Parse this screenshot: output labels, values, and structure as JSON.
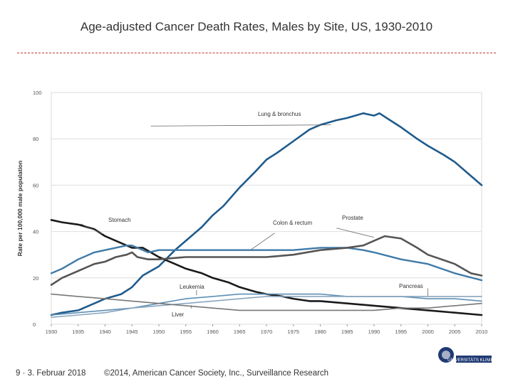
{
  "slide": {
    "title": "Age-adjusted Cancer Death Rates, Males by Site, US, 1930-2010",
    "footer_left": "9 · 3. Februar 2018",
    "footer_right": "©2014, American Cancer Society, Inc., Surveillance Research"
  },
  "logo": {
    "text": "UNIVERSITÄTS KLINIKUM",
    "icon": "university-hospital-logo"
  },
  "colors": {
    "rule": "#c0392b",
    "brand": "#1f3a73"
  },
  "chart_data": {
    "type": "line",
    "ylabel": "Rate per 100,000 male population",
    "xlabel": "",
    "xlim": [
      1930,
      2010
    ],
    "ylim": [
      0,
      100
    ],
    "xticks": [
      "1930",
      "1935",
      "1940",
      "1945",
      "1950",
      "1955",
      "1960",
      "1965",
      "1970",
      "1975",
      "1980",
      "1985",
      "1990",
      "1995",
      "2000",
      "2005",
      "2010"
    ],
    "yticks": [
      "0",
      "20",
      "40",
      "60",
      "80",
      "100"
    ],
    "grid": true,
    "series": [
      {
        "name": "Lung & bronchus",
        "label": "Lung & bronchus",
        "color": "#1f5b8c",
        "width": 2.6,
        "x": [
          1930,
          1932,
          1935,
          1938,
          1940,
          1943,
          1945,
          1947,
          1950,
          1953,
          1955,
          1958,
          1960,
          1962,
          1965,
          1968,
          1970,
          1972,
          1975,
          1978,
          1980,
          1983,
          1985,
          1988,
          1990,
          1991,
          1993,
          1995,
          1998,
          2000,
          2003,
          2005,
          2008,
          2010
        ],
        "y": [
          4,
          5,
          6,
          9,
          11,
          13,
          16,
          21,
          25,
          32,
          36,
          42,
          47,
          51,
          59,
          66,
          71,
          74,
          79,
          84,
          86,
          88,
          89,
          91,
          90,
          91,
          88,
          85,
          80,
          77,
          73,
          70,
          64,
          60
        ]
      },
      {
        "name": "Stomach",
        "label": "Stomach",
        "color": "#1a1a1a",
        "width": 2.6,
        "x": [
          1930,
          1932,
          1935,
          1938,
          1940,
          1943,
          1945,
          1947,
          1950,
          1953,
          1955,
          1958,
          1960,
          1963,
          1965,
          1968,
          1970,
          1973,
          1975,
          1978,
          1980,
          1985,
          1990,
          1995,
          2000,
          2005,
          2010
        ],
        "y": [
          45,
          44,
          43,
          41,
          38,
          35,
          33,
          33,
          29,
          26,
          24,
          22,
          20,
          18,
          16,
          14,
          13,
          12,
          11,
          10,
          10,
          9,
          8,
          7,
          6,
          5,
          4
        ]
      },
      {
        "name": "Colon & rectum",
        "label": "Colon & rectum",
        "color": "#3f7aa8",
        "width": 2.4,
        "x": [
          1930,
          1932,
          1935,
          1938,
          1940,
          1942,
          1944,
          1945,
          1946,
          1948,
          1950,
          1955,
          1960,
          1965,
          1970,
          1975,
          1980,
          1985,
          1988,
          1990,
          1995,
          2000,
          2005,
          2010
        ],
        "y": [
          22,
          24,
          28,
          31,
          32,
          33,
          34,
          34,
          33,
          31,
          32,
          32,
          32,
          32,
          32,
          32,
          33,
          33,
          32,
          31,
          28,
          26,
          22,
          19
        ]
      },
      {
        "name": "Prostate",
        "label": "Prostate",
        "color": "#555555",
        "width": 2.6,
        "x": [
          1930,
          1932,
          1935,
          1938,
          1940,
          1942,
          1944,
          1945,
          1946,
          1948,
          1950,
          1955,
          1960,
          1965,
          1970,
          1975,
          1980,
          1985,
          1988,
          1990,
          1992,
          1995,
          1998,
          2000,
          2005,
          2008,
          2010
        ],
        "y": [
          17,
          20,
          23,
          26,
          27,
          29,
          30,
          31,
          29,
          28,
          28,
          29,
          29,
          29,
          29,
          30,
          32,
          33,
          34,
          36,
          38,
          37,
          33,
          30,
          26,
          22,
          21
        ]
      },
      {
        "name": "Leukemia",
        "label": "Leukemia",
        "color": "#5d8fb5",
        "width": 1.6,
        "x": [
          1930,
          1935,
          1940,
          1945,
          1950,
          1955,
          1960,
          1965,
          1970,
          1975,
          1980,
          1985,
          1990,
          1995,
          2000,
          2005,
          2010
        ],
        "y": [
          4,
          5,
          6,
          7,
          9,
          11,
          12,
          13,
          13,
          13,
          13,
          12,
          12,
          12,
          11,
          11,
          10
        ]
      },
      {
        "name": "Pancreas",
        "label": "Pancreas",
        "color": "#8aa6bf",
        "width": 1.6,
        "x": [
          1930,
          1935,
          1940,
          1945,
          1950,
          1955,
          1960,
          1965,
          1970,
          1975,
          1980,
          1985,
          1990,
          1995,
          2000,
          2005,
          2010
        ],
        "y": [
          3,
          4,
          5,
          7,
          8,
          9,
          10,
          11,
          12,
          12,
          12,
          12,
          12,
          12,
          12,
          12,
          12
        ]
      },
      {
        "name": "Liver",
        "label": "Liver",
        "color": "#777777",
        "width": 1.6,
        "x": [
          1930,
          1935,
          1940,
          1945,
          1950,
          1955,
          1960,
          1965,
          1970,
          1975,
          1980,
          1985,
          1990,
          1995,
          2000,
          2005,
          2010
        ],
        "y": [
          13,
          12,
          11,
          10,
          9,
          8,
          7,
          6,
          6,
          6,
          6,
          6,
          6,
          7,
          7,
          8,
          9
        ]
      }
    ]
  }
}
